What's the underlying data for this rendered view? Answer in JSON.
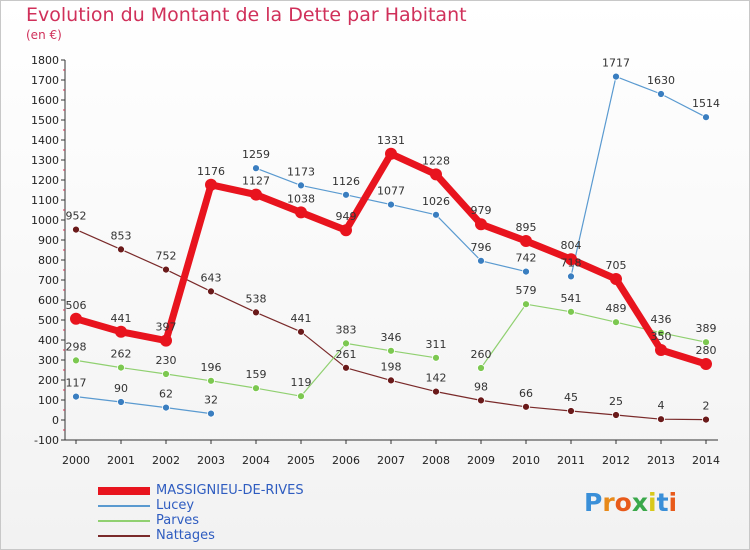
{
  "title": "Evolution du Montant de la Dette par Habitant",
  "unit_label": "(en €)",
  "logo": {
    "letters": [
      "P",
      "r",
      "o",
      "x",
      "i",
      "t",
      "i"
    ],
    "colors": [
      "#3a8fd8",
      "#e88a1a",
      "#e85a1a",
      "#3aa84a",
      "#d8c81a",
      "#3a8fd8",
      "#e85a1a"
    ]
  },
  "chart_data": {
    "type": "line",
    "x": [
      2000,
      2001,
      2002,
      2003,
      2004,
      2005,
      2006,
      2007,
      2008,
      2009,
      2010,
      2011,
      2012,
      2013,
      2014
    ],
    "ylim": [
      -100,
      1800
    ],
    "yticks": [
      -100,
      0,
      100,
      200,
      300,
      400,
      500,
      600,
      700,
      800,
      900,
      1000,
      1100,
      1200,
      1300,
      1400,
      1500,
      1600,
      1700,
      1800
    ],
    "grid": false,
    "legend_position": "bottom-left",
    "series": [
      {
        "name": "MASSIGNIEU-DE-RIVES",
        "color": "#e8141e",
        "marker": "#e8141e",
        "width": 7,
        "radius": 6,
        "values": [
          506,
          441,
          397,
          1176,
          1127,
          1038,
          949,
          1331,
          1228,
          979,
          895,
          804,
          705,
          350,
          280
        ],
        "labels": [
          "506",
          "441",
          "397",
          "1176",
          "1127",
          "1038",
          "949",
          "1331",
          "1228",
          "979",
          "895",
          "804",
          "705",
          "350",
          "280"
        ]
      },
      {
        "name": "Lucey",
        "color": "#5a9ad0",
        "marker": "#3a7ec0",
        "width": 1.2,
        "radius": 3.5,
        "segments": [
          [
            0,
            3
          ],
          [
            4,
            10
          ],
          [
            11,
            14
          ]
        ],
        "values": [
          117,
          90,
          62,
          32,
          1259,
          1173,
          1126,
          1077,
          1026,
          796,
          742,
          718,
          1717,
          1630,
          1514
        ],
        "labels": [
          "117",
          "90",
          "62",
          "32",
          "1259",
          "1173",
          "1126",
          "1077",
          "1026",
          "796",
          "742",
          "718",
          "1717",
          "1630",
          "1514"
        ]
      },
      {
        "name": "Parves",
        "color": "#90d070",
        "marker": "#7cc850",
        "width": 1.2,
        "radius": 3.5,
        "segments": [
          [
            0,
            8
          ],
          [
            9,
            14
          ]
        ],
        "values": [
          298,
          262,
          230,
          196,
          159,
          119,
          383,
          346,
          311,
          260,
          579,
          541,
          489,
          436,
          389
        ],
        "labels": [
          "298",
          "262",
          "230",
          "196",
          "159",
          "119",
          "383",
          "346",
          "311",
          "260",
          "579",
          "541",
          "489",
          "436",
          "389"
        ]
      },
      {
        "name": "Nattages",
        "color": "#7a2a2a",
        "marker": "#6a1a1a",
        "width": 1.2,
        "radius": 3.5,
        "values": [
          952,
          853,
          752,
          643,
          538,
          441,
          261,
          198,
          142,
          98,
          66,
          45,
          25,
          4,
          2
        ],
        "labels": [
          "952",
          "853",
          "752",
          "643",
          "538",
          "441",
          "261",
          "198",
          "142",
          "98",
          "66",
          "45",
          "25",
          "4",
          "2"
        ]
      }
    ]
  }
}
